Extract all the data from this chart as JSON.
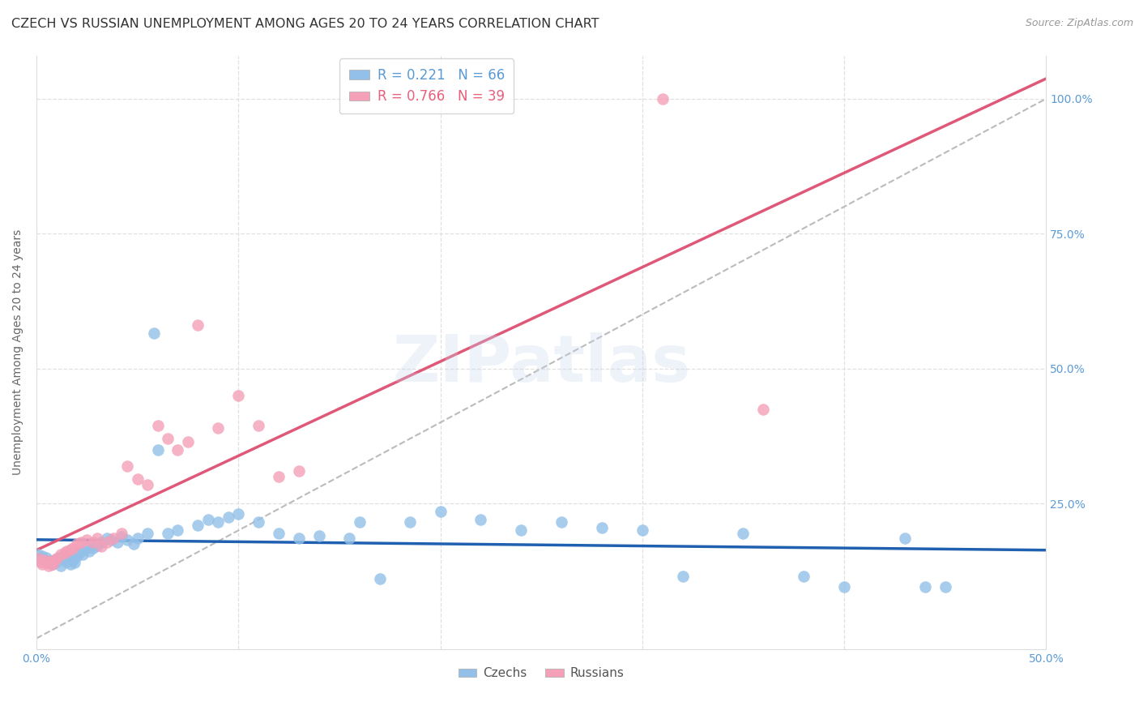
{
  "title": "CZECH VS RUSSIAN UNEMPLOYMENT AMONG AGES 20 TO 24 YEARS CORRELATION CHART",
  "source": "Source: ZipAtlas.com",
  "ylabel": "Unemployment Among Ages 20 to 24 years",
  "xlim": [
    0.0,
    0.5
  ],
  "ylim": [
    -0.02,
    1.08
  ],
  "xticks": [
    0.0,
    0.1,
    0.2,
    0.3,
    0.4,
    0.5
  ],
  "xticklabels": [
    "0.0%",
    "",
    "",
    "",
    "",
    "50.0%"
  ],
  "yticks": [
    0.0,
    0.25,
    0.5,
    0.75,
    1.0
  ],
  "yticklabels": [
    "",
    "25.0%",
    "50.0%",
    "75.0%",
    "100.0%"
  ],
  "legend_r": [
    "R = 0.221",
    "R = 0.766"
  ],
  "legend_n": [
    "N = 66",
    "N = 39"
  ],
  "czech_color": "#92C0E8",
  "russian_color": "#F4A0B8",
  "czech_line_color": "#2060B0",
  "russian_line_color": "#E05878",
  "ref_line_color": "#BBBBBB",
  "background_color": "#FFFFFF",
  "watermark": "ZIPatlas",
  "title_fontsize": 11.5,
  "axis_label_fontsize": 10,
  "tick_fontsize": 10,
  "czech_x": [
    0.001,
    0.002,
    0.003,
    0.004,
    0.005,
    0.006,
    0.007,
    0.008,
    0.009,
    0.01,
    0.011,
    0.012,
    0.013,
    0.014,
    0.015,
    0.016,
    0.017,
    0.018,
    0.019,
    0.02,
    0.021,
    0.022,
    0.023,
    0.025,
    0.026,
    0.028,
    0.03,
    0.032,
    0.035,
    0.037,
    0.04,
    0.042,
    0.045,
    0.048,
    0.05,
    0.055,
    0.058,
    0.06,
    0.065,
    0.07,
    0.08,
    0.085,
    0.09,
    0.095,
    0.1,
    0.11,
    0.12,
    0.13,
    0.14,
    0.155,
    0.16,
    0.17,
    0.185,
    0.2,
    0.22,
    0.24,
    0.26,
    0.28,
    0.3,
    0.32,
    0.35,
    0.38,
    0.4,
    0.43,
    0.44,
    0.45
  ],
  "czech_y": [
    0.155,
    0.148,
    0.152,
    0.145,
    0.15,
    0.14,
    0.143,
    0.138,
    0.145,
    0.142,
    0.15,
    0.135,
    0.148,
    0.155,
    0.142,
    0.155,
    0.138,
    0.145,
    0.14,
    0.152,
    0.158,
    0.162,
    0.155,
    0.168,
    0.162,
    0.168,
    0.172,
    0.178,
    0.185,
    0.182,
    0.178,
    0.188,
    0.182,
    0.175,
    0.185,
    0.195,
    0.565,
    0.35,
    0.195,
    0.2,
    0.21,
    0.22,
    0.215,
    0.225,
    0.23,
    0.215,
    0.195,
    0.185,
    0.19,
    0.185,
    0.215,
    0.11,
    0.215,
    0.235,
    0.22,
    0.2,
    0.215,
    0.205,
    0.2,
    0.115,
    0.195,
    0.115,
    0.095,
    0.185,
    0.095,
    0.095
  ],
  "russian_x": [
    0.001,
    0.002,
    0.003,
    0.004,
    0.005,
    0.006,
    0.007,
    0.008,
    0.009,
    0.01,
    0.012,
    0.014,
    0.015,
    0.017,
    0.018,
    0.02,
    0.022,
    0.025,
    0.028,
    0.03,
    0.032,
    0.035,
    0.038,
    0.042,
    0.045,
    0.05,
    0.055,
    0.06,
    0.065,
    0.07,
    0.075,
    0.08,
    0.09,
    0.1,
    0.11,
    0.12,
    0.13,
    0.31,
    0.36
  ],
  "russian_y": [
    0.148,
    0.142,
    0.138,
    0.145,
    0.14,
    0.135,
    0.142,
    0.138,
    0.145,
    0.148,
    0.155,
    0.158,
    0.162,
    0.165,
    0.168,
    0.175,
    0.178,
    0.182,
    0.178,
    0.185,
    0.17,
    0.178,
    0.185,
    0.195,
    0.32,
    0.295,
    0.285,
    0.395,
    0.37,
    0.35,
    0.365,
    0.58,
    0.39,
    0.45,
    0.395,
    0.3,
    0.31,
    1.0,
    0.425
  ]
}
